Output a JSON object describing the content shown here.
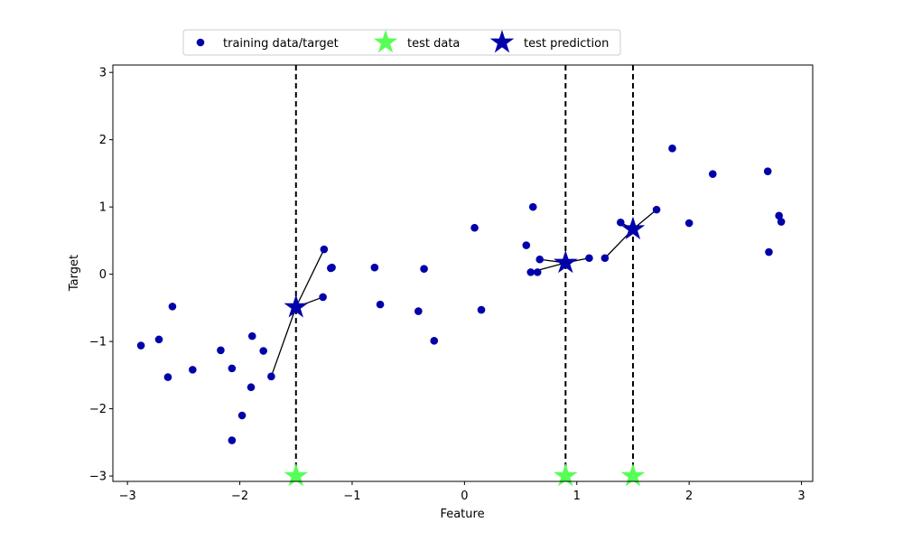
{
  "chart_data": {
    "type": "scatter",
    "title": "",
    "xlabel": "Feature",
    "ylabel": "Target",
    "xlim": [
      -3.13,
      3.1
    ],
    "ylim": [
      -3.08,
      3.11
    ],
    "grid": false,
    "legend_placement": "top-center",
    "xticks": [
      {
        "value": -3,
        "label": "−3"
      },
      {
        "value": -2,
        "label": "−2"
      },
      {
        "value": -1,
        "label": "−1"
      },
      {
        "value": 0,
        "label": "0"
      },
      {
        "value": 1,
        "label": "1"
      },
      {
        "value": 2,
        "label": "2"
      },
      {
        "value": 3,
        "label": "3"
      }
    ],
    "yticks": [
      {
        "value": -3,
        "label": "−3"
      },
      {
        "value": -2,
        "label": "−2"
      },
      {
        "value": -1,
        "label": "−1"
      },
      {
        "value": 0,
        "label": "0"
      },
      {
        "value": 1,
        "label": "1"
      },
      {
        "value": 2,
        "label": "2"
      },
      {
        "value": 3,
        "label": "3"
      }
    ],
    "colors": {
      "training": "#0000aa",
      "test_data": "#55ff55",
      "test_prediction": "#0000aa",
      "lines": "#000000"
    },
    "series": [
      {
        "name": "training data/target",
        "marker": "circle",
        "points": [
          [
            -2.88,
            -1.06
          ],
          [
            -2.72,
            -0.97
          ],
          [
            -2.64,
            -1.53
          ],
          [
            -2.6,
            -0.48
          ],
          [
            -2.42,
            -1.42
          ],
          [
            -2.17,
            -1.13
          ],
          [
            -2.07,
            -1.4
          ],
          [
            -2.07,
            -2.47
          ],
          [
            -1.98,
            -2.1
          ],
          [
            -1.9,
            -1.68
          ],
          [
            -1.89,
            -0.92
          ],
          [
            -1.79,
            -1.14
          ],
          [
            -1.72,
            -1.52
          ],
          [
            -1.26,
            -0.34
          ],
          [
            -1.25,
            0.37
          ],
          [
            -1.19,
            0.09
          ],
          [
            -1.18,
            0.1
          ],
          [
            -0.8,
            0.1
          ],
          [
            -0.75,
            -0.45
          ],
          [
            -0.41,
            -0.55
          ],
          [
            -0.36,
            0.08
          ],
          [
            -0.27,
            -0.99
          ],
          [
            0.09,
            0.69
          ],
          [
            0.15,
            -0.53
          ],
          [
            0.55,
            0.43
          ],
          [
            0.59,
            0.03
          ],
          [
            0.61,
            1.0
          ],
          [
            0.65,
            0.03
          ],
          [
            0.67,
            0.22
          ],
          [
            1.11,
            0.24
          ],
          [
            1.25,
            0.24
          ],
          [
            1.39,
            0.77
          ],
          [
            1.71,
            0.96
          ],
          [
            1.85,
            1.87
          ],
          [
            2.0,
            0.76
          ],
          [
            2.21,
            1.49
          ],
          [
            2.7,
            1.53
          ],
          [
            2.71,
            0.33
          ],
          [
            2.8,
            0.87
          ],
          [
            2.82,
            0.78
          ]
        ]
      },
      {
        "name": "test data",
        "marker": "star",
        "points": [
          [
            -1.5,
            -3.0
          ],
          [
            0.9,
            -3.0
          ],
          [
            1.5,
            -3.0
          ]
        ]
      },
      {
        "name": "test prediction",
        "marker": "star",
        "points": [
          [
            -1.5,
            -0.49
          ],
          [
            0.9,
            0.17
          ],
          [
            1.5,
            0.67
          ]
        ]
      }
    ],
    "vertical_dashed_lines_x": [
      -1.5,
      0.9,
      1.5
    ],
    "neighbor_lines": [
      {
        "from": [
          -1.5,
          -0.49
        ],
        "to": [
          -1.26,
          -0.34
        ]
      },
      {
        "from": [
          -1.5,
          -0.49
        ],
        "to": [
          -1.25,
          0.37
        ]
      },
      {
        "from": [
          -1.5,
          -0.49
        ],
        "to": [
          -1.72,
          -1.52
        ]
      },
      {
        "from": [
          0.9,
          0.17
        ],
        "to": [
          0.67,
          0.22
        ]
      },
      {
        "from": [
          0.9,
          0.17
        ],
        "to": [
          0.59,
          0.03
        ]
      },
      {
        "from": [
          0.9,
          0.17
        ],
        "to": [
          1.11,
          0.24
        ]
      },
      {
        "from": [
          1.5,
          0.67
        ],
        "to": [
          1.39,
          0.77
        ]
      },
      {
        "from": [
          1.5,
          0.67
        ],
        "to": [
          1.71,
          0.96
        ]
      },
      {
        "from": [
          1.5,
          0.67
        ],
        "to": [
          1.25,
          0.24
        ]
      }
    ]
  }
}
